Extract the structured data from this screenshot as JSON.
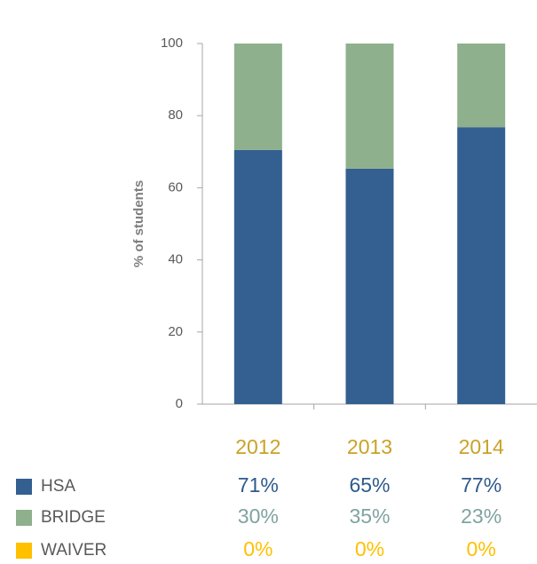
{
  "chart_data": {
    "type": "stacked_bar",
    "y_label": "% of students",
    "categories": [
      "2012",
      "2013",
      "2014"
    ],
    "category_label_color": "#c9a227",
    "series": [
      {
        "name": "HSA",
        "color": "#335f91",
        "label_color": "#2e5a8c",
        "values": [
          70.5,
          65.3,
          76.8
        ],
        "value_labels": [
          "71%",
          "65%",
          "77%"
        ]
      },
      {
        "name": "BRIDGE",
        "color": "#8fb08c",
        "label_color": "#7fa3a0",
        "values": [
          29.5,
          34.7,
          23.2
        ],
        "value_labels": [
          "30%",
          "35%",
          "23%"
        ]
      },
      {
        "name": "WAIVER",
        "color": "#ffc000",
        "label_color": "#ffc000",
        "values": [
          0,
          0,
          0
        ],
        "value_labels": [
          "0%",
          "0%",
          "0%"
        ]
      }
    ],
    "ylim": [
      0,
      100
    ],
    "yticks": [
      0,
      20,
      40,
      60,
      80,
      100
    ],
    "grid": false
  }
}
